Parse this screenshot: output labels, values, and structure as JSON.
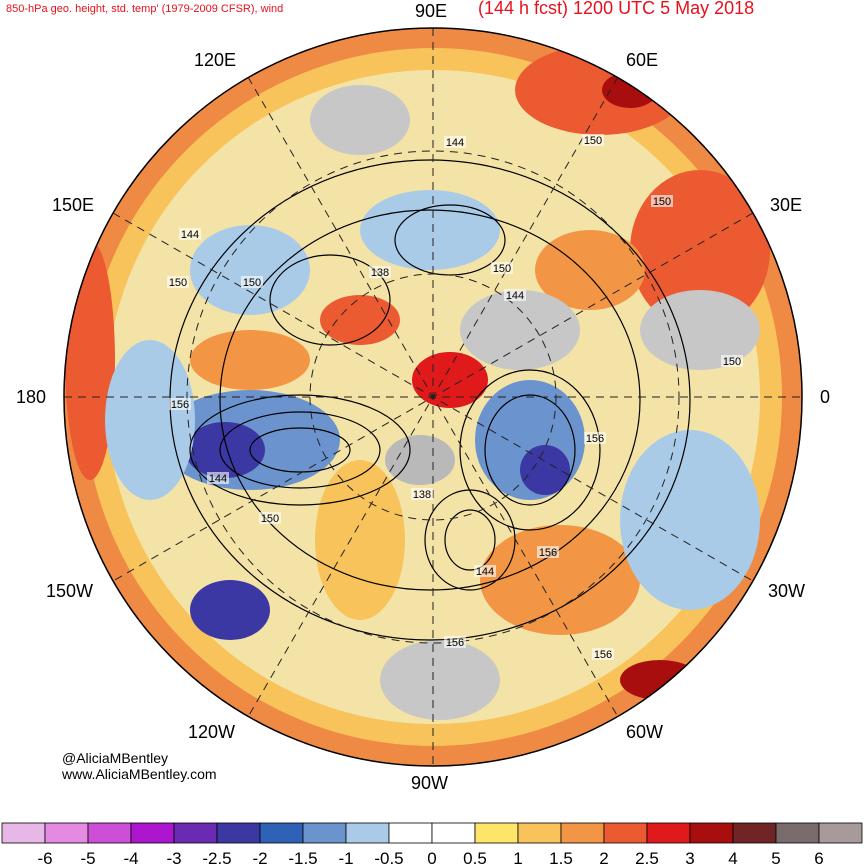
{
  "header": {
    "left": "850-hPa geo. height, std. temp' (1979-2009 CFSR), wind",
    "right": "(144 h fcst) 1200 UTC 5 May 2018"
  },
  "longitude_labels": [
    "90E",
    "60E",
    "30E",
    "0",
    "30W",
    "60W",
    "90W",
    "120W",
    "150W",
    "180",
    "150E",
    "120E"
  ],
  "contour_labels": [
    "144",
    "150",
    "150",
    "150",
    "150",
    "144",
    "138",
    "150",
    "144",
    "156",
    "156",
    "144",
    "150",
    "138",
    "156",
    "144",
    "156",
    "156",
    "150"
  ],
  "credit": {
    "handle": "@AliciaMBentley",
    "site": "www.AliciaMBentley.com"
  },
  "colorbar": {
    "colors": [
      "#e7b8e7",
      "#e38ae3",
      "#cd4fd8",
      "#ac16cf",
      "#6b2ab2",
      "#3c38a3",
      "#2f62b7",
      "#6b93cd",
      "#a9cbe8",
      "#ffffff",
      "#ffffff",
      "#fde56a",
      "#f7c35a",
      "#f29645",
      "#ec5a32",
      "#e01a1a",
      "#a80e0e",
      "#6f2525",
      "#7a6c6c",
      "#a8999b"
    ],
    "labels": [
      "-6",
      "-5",
      "-4",
      "-3",
      "-2.5",
      "-2",
      "-1.5",
      "-1",
      "-0.5",
      "0",
      "0.5",
      "1",
      "1.5",
      "2",
      "2.5",
      "3",
      "4",
      "5",
      "6"
    ]
  }
}
